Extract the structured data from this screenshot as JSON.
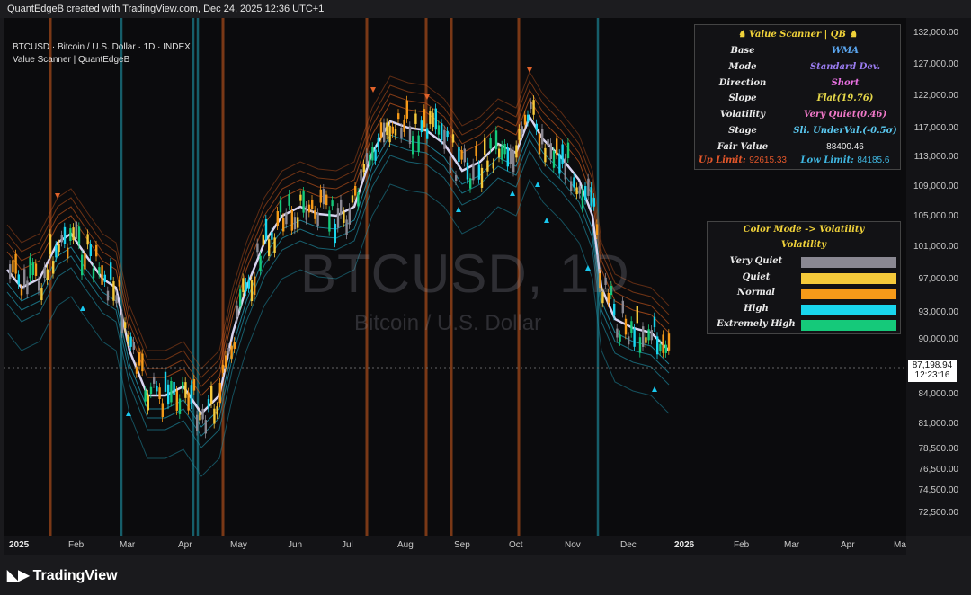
{
  "header": {
    "text": "QuantEdgeB created with TradingView.com, Dec 24, 2025 12:36 UTC+1"
  },
  "legend": {
    "line1": "BTCUSD · Bitcoin / U.S. Dollar · 1D · INDEX",
    "line2": "Value Scanner | QuantEdgeB"
  },
  "watermark": {
    "symbol": "BTCUSD, 1D",
    "name": "Bitcoin / U.S. Dollar"
  },
  "price_axis": [
    "132,000.00",
    "127,000.00",
    "122,000.00",
    "117,000.00",
    "113,000.00",
    "109,000.00",
    "105,000.00",
    "101,000.00",
    "97,000.00",
    "93,000.00",
    "90,000.00",
    "84,000.00",
    "81,000.00",
    "78,500.00",
    "76,500.00",
    "74,500.00",
    "72,500.00"
  ],
  "last_price": {
    "value": "87,198.94",
    "countdown": "12:23:16"
  },
  "time_axis": [
    "2025",
    "Feb",
    "Mar",
    "Apr",
    "May",
    "Jun",
    "Jul",
    "Aug",
    "Sep",
    "Oct",
    "Nov",
    "Dec",
    "2026",
    "Feb",
    "Mar",
    "Apr",
    "Ma"
  ],
  "value_scanner": {
    "title": "♞ Value Scanner | QB ♞",
    "rows": [
      {
        "k": "Base",
        "v": "WMA"
      },
      {
        "k": "Mode",
        "v": "Standard Dev."
      },
      {
        "k": "Direction",
        "v": "Short"
      },
      {
        "k": "Slope",
        "v": "Flat(19.76)"
      },
      {
        "k": "Volatility",
        "v": "Very Quiet(0.46)"
      },
      {
        "k": "Stage",
        "v": "Sli. UnderVal.(-0.5σ)"
      },
      {
        "k": "Fair Value",
        "v": "88400.46"
      }
    ],
    "up_limit_label": "Up Limit:",
    "up_limit": "92615.33",
    "low_limit_label": "Low Limit:",
    "low_limit": "84185.6"
  },
  "color_mode": {
    "title": "Color Mode -> Volatility",
    "subtitle": "Volatility",
    "items": [
      {
        "label": "Very Quiet",
        "color": "#8a8892"
      },
      {
        "label": "Quiet",
        "color": "#f5c93a"
      },
      {
        "label": "Normal",
        "color": "#f59a19"
      },
      {
        "label": "High",
        "color": "#19d6ee"
      },
      {
        "label": "Extremely High",
        "color": "#15c97a"
      }
    ]
  },
  "footer": {
    "logo": "TradingView"
  },
  "colors": {
    "fair_value": "#d8d4f0",
    "upper_band": "#c2551c",
    "lower_band": "#1e8aa0",
    "short_signal": "#a0481a",
    "long_signal": "#1a7a8a"
  }
}
